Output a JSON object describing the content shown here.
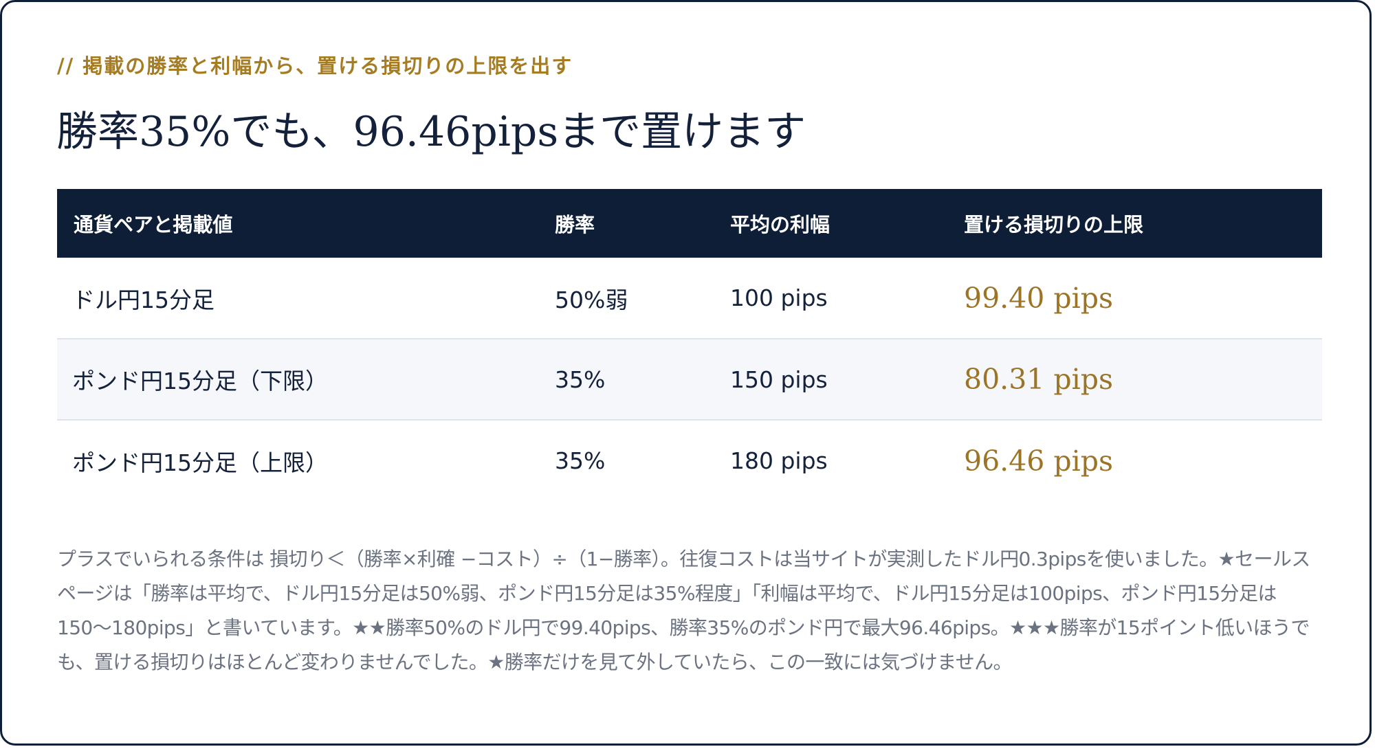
{
  "eyebrow": "// 掲載の勝率と利幅から、置ける損切りの上限を出す",
  "headline": "勝率35%でも、96.46pipsまで置けます",
  "table": {
    "headers": [
      "通貨ペアと掲載値",
      "勝率",
      "平均の利幅",
      "置ける損切りの上限"
    ],
    "rows": [
      {
        "pair": "ドル円15分足",
        "win_rate": "50%弱",
        "avg_profit": "100 pips",
        "stop_limit": "99.40 pips"
      },
      {
        "pair": "ポンド円15分足（下限）",
        "win_rate": "35%",
        "avg_profit": "150 pips",
        "stop_limit": "80.31 pips"
      },
      {
        "pair": "ポンド円15分足（上限）",
        "win_rate": "35%",
        "avg_profit": "180 pips",
        "stop_limit": "96.46 pips"
      }
    ]
  },
  "note": "プラスでいられる条件は 損切り＜（勝率×利確 −コスト）÷（1−勝率）。往復コストは当サイトが実測したドル円0.3pipsを使いました。★セールスページは「勝率は平均で、ドル円15分足は50%弱、ポンド円15分足は35%程度」「利幅は平均で、ドル円15分足は100pips、ポンド円15分足は150〜180pips」と書いています。★★勝率50%のドル円で99.40pips、勝率35%のポンド円で最大96.46pips。★★★勝率が15ポイント低いほうでも、置ける損切りはほとんど変わりませんでした。★勝率だけを見て外していたら、この一致には気づけません。",
  "colors": {
    "navy": "#0d1e36",
    "gold": "#a67c22",
    "limit_gold": "#9c7427",
    "note_gray": "#6b7280",
    "row_alt": "#f5f7fb"
  }
}
